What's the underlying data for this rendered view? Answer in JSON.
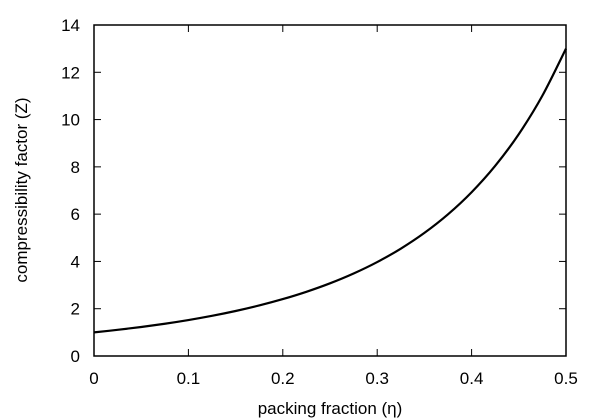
{
  "chart_data": {
    "type": "line",
    "title": "",
    "xlabel": "packing fraction (η)",
    "ylabel": "compressibility factor (Z)",
    "xlim": [
      0,
      0.5
    ],
    "ylim": [
      0,
      14
    ],
    "xticks": [
      "0",
      "0.1",
      "0.2",
      "0.3",
      "0.4",
      "0.5"
    ],
    "yticks": [
      "0",
      "2",
      "4",
      "6",
      "8",
      "10",
      "12",
      "14"
    ],
    "grid": false,
    "line_color": "#000000",
    "series": [
      {
        "x": [
          0,
          0.025,
          0.05,
          0.075,
          0.1,
          0.125,
          0.15,
          0.175,
          0.2,
          0.225,
          0.25,
          0.275,
          0.3,
          0.325,
          0.35,
          0.375,
          0.4,
          0.425,
          0.45,
          0.475,
          0.5
        ],
        "y": [
          1,
          1.1065,
          1.2274,
          1.3649,
          1.5213,
          1.6997,
          1.9037,
          2.1375,
          2.4063,
          2.716,
          3.0741,
          3.4896,
          3.9738,
          4.5401,
          5.2057,
          5.992,
          6.9259,
          8.042,
          9.3847,
          11.0119,
          13
        ]
      }
    ]
  }
}
